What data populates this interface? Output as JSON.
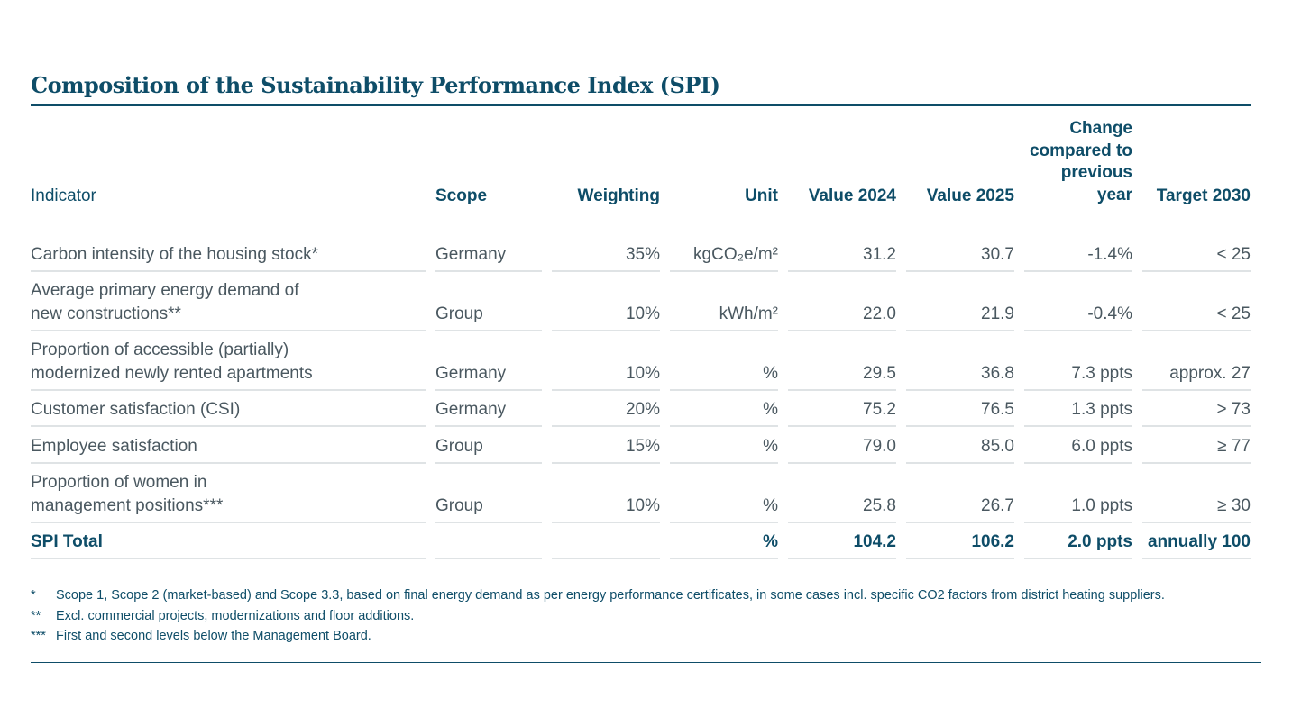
{
  "title": "Composition of the Sustainability Performance Index (SPI)",
  "headers": {
    "indicator": "Indicator",
    "scope": "Scope",
    "weighting": "Weighting",
    "unit": "Unit",
    "value2024": "Value 2024",
    "value2025": "Value 2025",
    "change_l1": "Change",
    "change_l2": "compared to",
    "change_l3": "previous",
    "change_l4": "year",
    "target": "Target 2030"
  },
  "rows": [
    {
      "indicator_l1": "",
      "indicator_l2": "Carbon intensity of the housing stock*",
      "scope": "Germany",
      "weighting": "35%",
      "unit": "kgCO₂e/m²",
      "value2024": "31.2",
      "value2025": "30.7",
      "change": "-1.4%",
      "target": "< 25"
    },
    {
      "indicator_l1": "Average primary energy demand of",
      "indicator_l2": "new constructions**",
      "scope": "Group",
      "weighting": "10%",
      "unit": "kWh/m²",
      "value2024": "22.0",
      "value2025": "21.9",
      "change": "-0.4%",
      "target": "< 25"
    },
    {
      "indicator_l1": "Proportion of accessible (partially)",
      "indicator_l2": "modernized newly rented apartments",
      "scope": "Germany",
      "weighting": "10%",
      "unit": "%",
      "value2024": "29.5",
      "value2025": "36.8",
      "change": "7.3 ppts",
      "target": "approx. 27"
    },
    {
      "indicator_l1": "",
      "indicator_l2": "Customer satisfaction (CSI)",
      "scope": "Germany",
      "weighting": "20%",
      "unit": "%",
      "value2024": "75.2",
      "value2025": "76.5",
      "change": "1.3 ppts",
      "target": "> 73"
    },
    {
      "indicator_l1": "",
      "indicator_l2": "Employee satisfaction",
      "scope": "Group",
      "weighting": "15%",
      "unit": "%",
      "value2024": "79.0",
      "value2025": "85.0",
      "change": "6.0 ppts",
      "target": "≥ 77"
    },
    {
      "indicator_l1": "Proportion of women in",
      "indicator_l2": "management positions***",
      "scope": "Group",
      "weighting": "10%",
      "unit": "%",
      "value2024": "25.8",
      "value2025": "26.7",
      "change": "1.0 ppts",
      "target": "≥ 30"
    }
  ],
  "total": {
    "indicator": "SPI Total",
    "scope": "",
    "weighting": "",
    "unit": "%",
    "value2024": "104.2",
    "value2025": "106.2",
    "change": "2.0 ppts",
    "target": "annually 100"
  },
  "footnotes": [
    {
      "marker": "*",
      "text": "Scope 1, Scope 2 (market-based) and Scope 3.3, based on final energy demand as per energy performance certificates, in some cases incl. specific CO2 factors from district heating suppliers."
    },
    {
      "marker": "**",
      "text": "Excl. commercial projects, modernizations and floor additions."
    },
    {
      "marker": "***",
      "text": "First and second levels below the Management Board."
    }
  ],
  "colors": {
    "accent": "#0e4d68",
    "text": "#4a5860",
    "rule": "#dfe3e5"
  }
}
